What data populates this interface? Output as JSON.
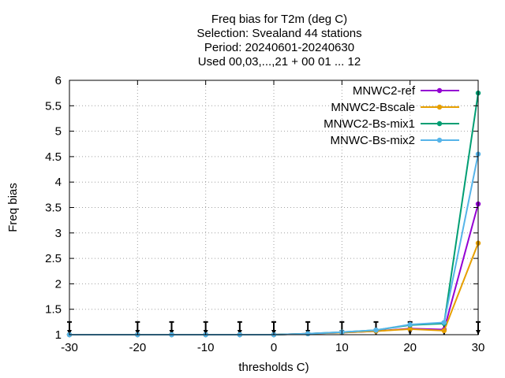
{
  "chart_data": {
    "type": "line",
    "title": [
      "Freq bias  for T2m (deg C)",
      "Selection: Svealand     44 stations",
      "Period: 20240601-20240630",
      "Used 00,03,...,21 + 00 01 ... 12"
    ],
    "xlabel": "thresholds C)",
    "ylabel": "Freq bias",
    "xlim": [
      -30,
      30
    ],
    "ylim": [
      1,
      6
    ],
    "xticks": [
      -30,
      -20,
      -10,
      0,
      10,
      20,
      30
    ],
    "yticks": [
      1,
      1.5,
      2,
      2.5,
      3,
      3.5,
      4,
      4.5,
      5,
      5.5,
      6
    ],
    "ytick_labels": [
      "1",
      "1.5",
      "2",
      "2.5",
      "3",
      "3.5",
      "4",
      "4.5",
      "5",
      "5.5",
      "6"
    ],
    "grid": true,
    "legend_position": "top-right",
    "x": [
      -30,
      -20,
      -15,
      -10,
      -5,
      0,
      5,
      10,
      15,
      20,
      25,
      30
    ],
    "series": [
      {
        "name": "MNWC2-ref",
        "color": "#9400d3",
        "values": [
          1.0,
          1.0,
          1.0,
          1.0,
          1.0,
          1.0,
          1.02,
          1.04,
          1.07,
          1.12,
          1.1,
          3.57
        ]
      },
      {
        "name": "MNWC2-Bscale",
        "color": "#e69f00",
        "values": [
          1.0,
          1.0,
          1.0,
          1.0,
          1.0,
          1.0,
          1.02,
          1.04,
          1.07,
          1.11,
          1.08,
          2.8
        ]
      },
      {
        "name": "MNWC2-Bs-mix1",
        "color": "#009e73",
        "values": [
          1.0,
          1.0,
          1.0,
          1.0,
          1.0,
          1.0,
          1.02,
          1.05,
          1.09,
          1.19,
          1.22,
          5.75
        ]
      },
      {
        "name": "MNWC-Bs-mix2",
        "color": "#56b4e9",
        "values": [
          1.0,
          1.0,
          1.0,
          1.0,
          1.0,
          1.0,
          1.02,
          1.05,
          1.09,
          1.2,
          1.24,
          4.55
        ]
      }
    ],
    "reference_markers": {
      "color": "#000000",
      "x": [
        -30,
        -20,
        -15,
        -10,
        -5,
        0,
        5,
        10,
        15,
        20,
        25,
        30
      ],
      "y_top": 1.25,
      "y_bottom": 1.0
    }
  }
}
